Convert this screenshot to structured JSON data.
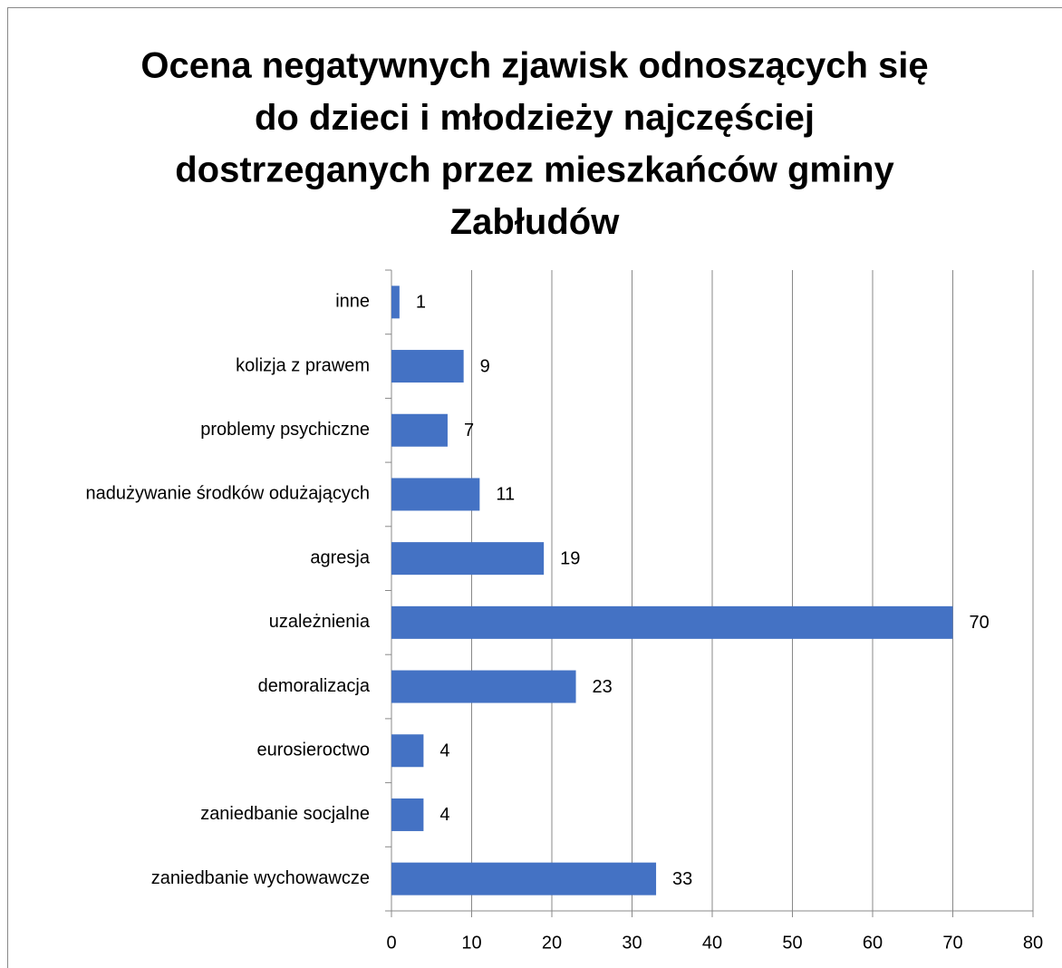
{
  "chart_data": {
    "type": "bar",
    "orientation": "horizontal",
    "title": [
      "Ocena negatywnych zjawisk odnoszących się",
      "do dzieci i młodzieży najczęściej",
      "dostrzeganych przez mieszkańców gminy",
      "Zabłudów"
    ],
    "categories": [
      "inne",
      "kolizja z prawem",
      "problemy psychiczne",
      "nadużywanie środków odużających",
      "agresja",
      "uzależnienia",
      "demoralizacja",
      "eurosieroctwo",
      "zaniedbanie socjalne",
      "zaniedbanie wychowawcze"
    ],
    "values": [
      1,
      9,
      7,
      11,
      19,
      70,
      23,
      4,
      4,
      33
    ],
    "color": "#4472c4",
    "xlim": [
      0,
      80
    ],
    "xticks": [
      0,
      10,
      20,
      30,
      40,
      50,
      60,
      70,
      80
    ],
    "grid": true
  }
}
